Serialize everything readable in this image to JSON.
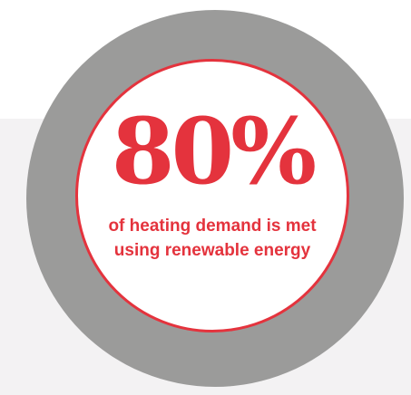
{
  "infographic": {
    "stat_value": "80%",
    "caption": "of heating demand is met using renewable energy"
  },
  "colors": {
    "accent_red": "#e4333d",
    "ring_gray": "#9b9b9a",
    "band_gray": "#f3f2f3",
    "background": "#ffffff"
  }
}
